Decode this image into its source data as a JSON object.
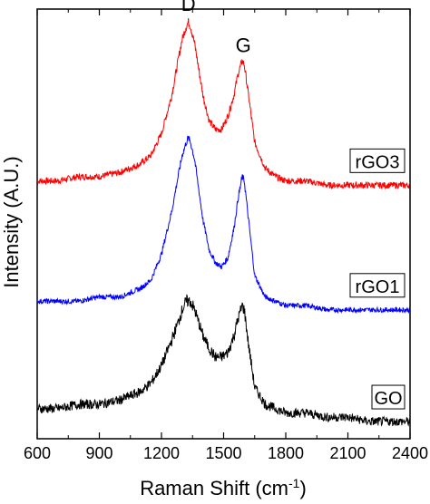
{
  "chart_data": {
    "type": "line",
    "xlabel_main": "Raman Shift (cm",
    "xlabel_sup": "-1",
    "xlabel_tail": ")",
    "ylabel": "Intensity (A.U.)",
    "xlim": [
      600,
      2400
    ],
    "x_ticks": [
      600,
      900,
      1200,
      1500,
      1800,
      2100,
      2400
    ],
    "y_ticks_labeled": false,
    "annotations": [
      {
        "text": "D",
        "x": 1330
      },
      {
        "text": "G",
        "x": 1595
      }
    ],
    "series": [
      {
        "name": "rGO3",
        "color": "#ff0000",
        "x": [
          600,
          700,
          800,
          900,
          1000,
          1100,
          1150,
          1200,
          1250,
          1280,
          1300,
          1320,
          1330,
          1340,
          1360,
          1380,
          1400,
          1430,
          1460,
          1490,
          1520,
          1550,
          1570,
          1590,
          1600,
          1620,
          1650,
          1700,
          1750,
          1800,
          1900,
          2000,
          2100,
          2200,
          2300,
          2400
        ],
        "y": [
          0.6,
          0.6,
          0.61,
          0.61,
          0.62,
          0.64,
          0.66,
          0.71,
          0.8,
          0.88,
          0.93,
          0.96,
          0.97,
          0.96,
          0.92,
          0.86,
          0.8,
          0.74,
          0.72,
          0.72,
          0.75,
          0.8,
          0.85,
          0.88,
          0.87,
          0.8,
          0.69,
          0.63,
          0.61,
          0.6,
          0.6,
          0.59,
          0.59,
          0.59,
          0.59,
          0.59
        ]
      },
      {
        "name": "rGO1",
        "color": "#0000ff",
        "x": [
          600,
          700,
          800,
          900,
          1000,
          1100,
          1150,
          1200,
          1250,
          1280,
          1300,
          1320,
          1330,
          1340,
          1360,
          1380,
          1400,
          1430,
          1460,
          1490,
          1520,
          1550,
          1570,
          1590,
          1600,
          1620,
          1650,
          1700,
          1750,
          1800,
          1900,
          2000,
          2100,
          2200,
          2300,
          2400
        ],
        "y": [
          0.32,
          0.32,
          0.32,
          0.33,
          0.33,
          0.35,
          0.37,
          0.43,
          0.53,
          0.61,
          0.66,
          0.69,
          0.7,
          0.69,
          0.65,
          0.58,
          0.51,
          0.44,
          0.41,
          0.4,
          0.42,
          0.49,
          0.56,
          0.61,
          0.6,
          0.51,
          0.38,
          0.33,
          0.32,
          0.31,
          0.31,
          0.3,
          0.3,
          0.3,
          0.3,
          0.3
        ]
      },
      {
        "name": "GO",
        "color": "#000000",
        "x": [
          600,
          700,
          800,
          900,
          1000,
          1100,
          1150,
          1200,
          1250,
          1280,
          1300,
          1320,
          1330,
          1340,
          1360,
          1380,
          1400,
          1430,
          1460,
          1490,
          1520,
          1550,
          1570,
          1590,
          1600,
          1620,
          1650,
          1700,
          1750,
          1800,
          1900,
          2000,
          2100,
          2200,
          2300,
          2400
        ],
        "y": [
          0.07,
          0.07,
          0.08,
          0.08,
          0.09,
          0.11,
          0.13,
          0.17,
          0.23,
          0.27,
          0.3,
          0.32,
          0.32,
          0.32,
          0.3,
          0.27,
          0.24,
          0.21,
          0.19,
          0.19,
          0.2,
          0.24,
          0.28,
          0.31,
          0.3,
          0.22,
          0.12,
          0.08,
          0.07,
          0.06,
          0.06,
          0.05,
          0.05,
          0.04,
          0.04,
          0.04
        ]
      }
    ]
  }
}
